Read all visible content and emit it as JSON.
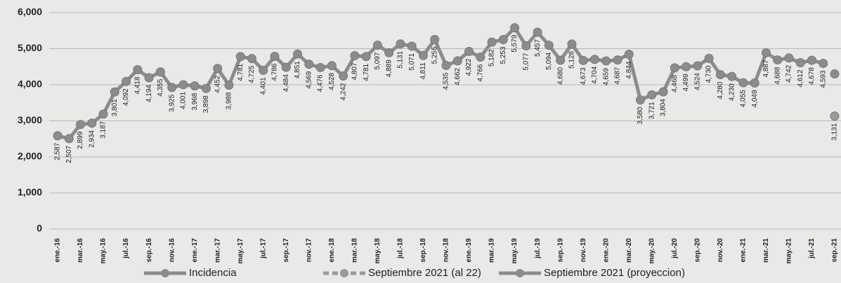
{
  "chart_data": {
    "type": "line",
    "categories": [
      "ene.-16",
      null,
      "mar.-16",
      null,
      "may.-16",
      null,
      "jul.-16",
      null,
      "sep.-16",
      null,
      "nov.-16",
      null,
      "ene.-17",
      null,
      "mar.-17",
      null,
      "may.-17",
      null,
      "jul.-17",
      null,
      "sep.-17",
      null,
      "nov.-17",
      null,
      "ene.-18",
      null,
      "mar.-18",
      null,
      "may.-18",
      null,
      "jul.-18",
      null,
      "sep.-18",
      null,
      "nov.-18",
      null,
      "ene.-19",
      null,
      "mar.-19",
      null,
      "may.-19",
      null,
      "jul.-19",
      null,
      "sep.-19",
      null,
      "nov.-19",
      null,
      "ene.-20",
      null,
      "mar.-20",
      null,
      "may.-20",
      null,
      "jul.-20",
      null,
      "sep.-20",
      null,
      "nov.-20",
      null,
      "ene.-21",
      null,
      "mar.-21",
      null,
      "may.-21",
      null,
      "jul.-21",
      null,
      "sep.-21"
    ],
    "series": [
      {
        "name": "Incidencia",
        "color": "#8c8c8c",
        "dash": false,
        "values": [
          2587,
          2507,
          2899,
          2934,
          3187,
          3801,
          4092,
          4418,
          4194,
          4355,
          3925,
          4001,
          3968,
          3898,
          4452,
          3988,
          4781,
          4725,
          4401,
          4786,
          4484,
          4851,
          4569,
          4476,
          4528,
          4242,
          4807,
          4781,
          5097,
          4889,
          5131,
          5071,
          4811,
          5255,
          4535,
          4662,
          4922,
          4766,
          5182,
          5253,
          5579,
          5077,
          5457,
          5094,
          4680,
          5128,
          4673,
          4704,
          4659,
          4687,
          4844,
          3580,
          3721,
          3804,
          4468,
          4499,
          4524,
          4730,
          4280,
          4230,
          4055,
          4049,
          4887,
          4688,
          4742,
          4612,
          4678,
          4593,
          null
        ],
        "value_labels": [
          "2,587",
          "2,507",
          "2,899",
          "2,934",
          "3,187",
          "3,801",
          "4,092",
          "4,418",
          "4,194",
          "4,355",
          "3,925",
          "4,001",
          "3,968",
          "3,898",
          "4,452",
          "3,988",
          "4,781",
          "4,725",
          "4,401",
          "4,786",
          "4,484",
          "4,851",
          "4,569",
          "4,476",
          "4,528",
          "4,242",
          "4,807",
          "4,781",
          "5,097",
          "4,889",
          "5,131",
          "5,071",
          "4,811",
          "5,255",
          "4,535",
          "4,662",
          "4,922",
          "4,766",
          "5,182",
          "5,253",
          "5,579",
          "5,077",
          "5,457",
          "5,094",
          "4,680",
          "5,128",
          "4,673",
          "4,704",
          "4,659",
          "4,687",
          "4,844",
          "3,580",
          "3,721",
          "3,804",
          "4,468",
          "4,499",
          "4,524",
          "4,730",
          "4,280",
          "4,230",
          "4,055",
          "4,049",
          "4,887",
          "4,688",
          "4,742",
          "4,612",
          "4,678",
          "4,593",
          null
        ]
      },
      {
        "name": "Septiembre 2021  (al 22)",
        "color": "#9a9a9a",
        "dash": true,
        "values": [
          null,
          null,
          null,
          null,
          null,
          null,
          null,
          null,
          null,
          null,
          null,
          null,
          null,
          null,
          null,
          null,
          null,
          null,
          null,
          null,
          null,
          null,
          null,
          null,
          null,
          null,
          null,
          null,
          null,
          null,
          null,
          null,
          null,
          null,
          null,
          null,
          null,
          null,
          null,
          null,
          null,
          null,
          null,
          null,
          null,
          null,
          null,
          null,
          null,
          null,
          null,
          null,
          null,
          null,
          null,
          null,
          null,
          null,
          null,
          null,
          null,
          null,
          null,
          null,
          null,
          null,
          null,
          null,
          3131
        ],
        "value_labels": [
          null,
          null,
          null,
          null,
          null,
          null,
          null,
          null,
          null,
          null,
          null,
          null,
          null,
          null,
          null,
          null,
          null,
          null,
          null,
          null,
          null,
          null,
          null,
          null,
          null,
          null,
          null,
          null,
          null,
          null,
          null,
          null,
          null,
          null,
          null,
          null,
          null,
          null,
          null,
          null,
          null,
          null,
          null,
          null,
          null,
          null,
          null,
          null,
          null,
          null,
          null,
          null,
          null,
          null,
          null,
          null,
          null,
          null,
          null,
          null,
          null,
          null,
          null,
          null,
          null,
          null,
          null,
          null,
          "3,131"
        ]
      },
      {
        "name": "Septiembre 2021 (proyeccion)",
        "color": "#8c8c8c",
        "dash": false,
        "values": [
          null,
          null,
          null,
          null,
          null,
          null,
          null,
          null,
          null,
          null,
          null,
          null,
          null,
          null,
          null,
          null,
          null,
          null,
          null,
          null,
          null,
          null,
          null,
          null,
          null,
          null,
          null,
          null,
          null,
          null,
          null,
          null,
          null,
          null,
          null,
          null,
          null,
          null,
          null,
          null,
          null,
          null,
          null,
          null,
          null,
          null,
          null,
          null,
          null,
          null,
          null,
          null,
          null,
          null,
          null,
          null,
          null,
          null,
          null,
          null,
          null,
          null,
          null,
          null,
          null,
          null,
          null,
          null,
          4300
        ]
      }
    ],
    "ylim": [
      0,
      6000
    ],
    "yticks": [
      0,
      {
        "value": 1000,
        "label": "1,000"
      },
      {
        "value": 2000,
        "label": "2,000"
      },
      {
        "value": 3000,
        "label": "3,000"
      },
      {
        "value": 4000,
        "label": "4,000"
      },
      {
        "value": 5000,
        "label": "5,000"
      },
      {
        "value": 6000,
        "label": "6,000"
      }
    ],
    "grid": true,
    "legend": "bottom"
  }
}
